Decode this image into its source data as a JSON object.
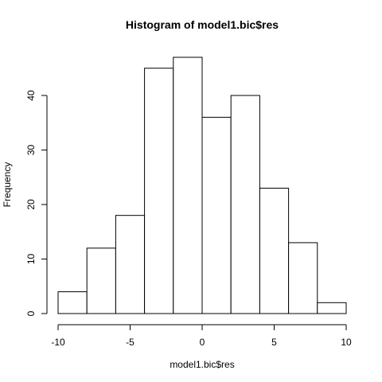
{
  "chart_data": {
    "type": "bar",
    "title": "Histogram of model1.bic$res",
    "xlabel": "model1.bic$res",
    "ylabel": "Frequency",
    "bins": [
      {
        "from": -10,
        "to": -8,
        "value": 4
      },
      {
        "from": -8,
        "to": -6,
        "value": 12
      },
      {
        "from": -6,
        "to": -4,
        "value": 18
      },
      {
        "from": -4,
        "to": -2,
        "value": 45
      },
      {
        "from": -2,
        "to": 0,
        "value": 47
      },
      {
        "from": 0,
        "to": 2,
        "value": 36
      },
      {
        "from": 2,
        "to": 4,
        "value": 40
      },
      {
        "from": 4,
        "to": 6,
        "value": 23
      },
      {
        "from": 6,
        "to": 8,
        "value": 13
      },
      {
        "from": 8,
        "to": 10,
        "value": 2
      }
    ],
    "xlim": [
      -10,
      10
    ],
    "ylim": [
      0,
      47
    ],
    "xticks": [
      -10,
      -5,
      0,
      5,
      10
    ],
    "yticks": [
      0,
      10,
      20,
      30,
      40
    ],
    "xtick_labels": [
      "-10",
      "-5",
      "0",
      "5",
      "10"
    ],
    "ytick_labels": [
      "0",
      "10",
      "20",
      "30",
      "40"
    ],
    "grid": false,
    "colors": {
      "bar_fill": "#ffffff",
      "bar_stroke": "#000000"
    }
  }
}
